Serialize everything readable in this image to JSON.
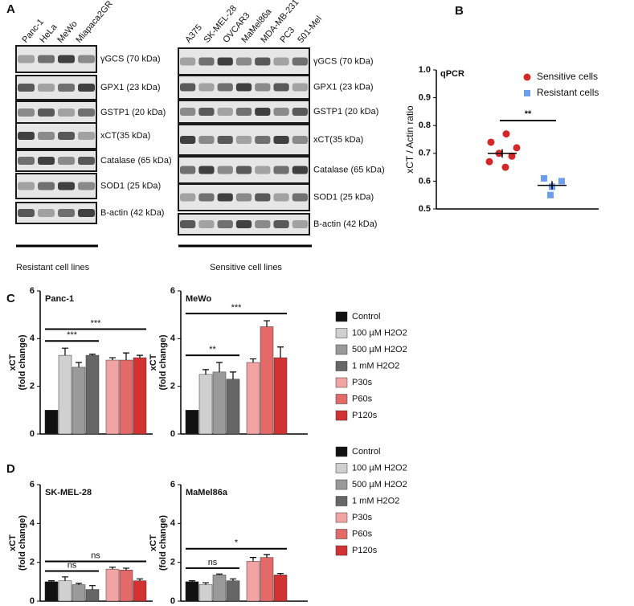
{
  "panel_labels": [
    "A",
    "B",
    "C",
    "D"
  ],
  "blots": [
    {
      "lanes": [
        "Panc-1",
        "HeLa",
        "MeWo",
        "Miapaca2GR"
      ],
      "proteins": [
        "γGCS (70 kDa)",
        "GPX1 (23 kDa)",
        "GSTP1 (20 kDa)",
        "xCT(35 kDa)",
        "Catalase (65 kDa)",
        "SOD1 (25 kDa)",
        "B-actin (42 kDa)"
      ],
      "group": "Resistant cell lines"
    },
    {
      "lanes": [
        "A375",
        "SK-MEL-28",
        "OVCAR3",
        "MaMel86a",
        "MDA-MB-231",
        "PC3",
        "501-Mel"
      ],
      "proteins": [
        "γGCS (70 kDa)",
        "GPX1 (23 kDa)",
        "GSTP1 (20 kDa)",
        "xCT(35 kDa)",
        "Catalase (65 kDa)",
        "SOD1 (25 kDa)",
        "B-actin (42 kDa)"
      ],
      "group": "Sensitive cell lines"
    }
  ],
  "chart_data": [
    {
      "type": "scatter",
      "title": "qPCR",
      "ylabel": "xCT / Actin ratio",
      "ylim": [
        0.5,
        1.0
      ],
      "yticks": [
        0.5,
        0.6,
        0.7,
        0.8,
        0.9,
        {
          "value": 1.0,
          "label": "1.0"
        }
      ],
      "series": [
        {
          "name": "Sensitive cells",
          "color": "#d62728",
          "marker": "circle",
          "values": [
            0.77,
            0.74,
            0.72,
            0.7,
            0.69,
            0.67,
            0.65
          ],
          "mean": 0.7,
          "error": 0.015
        },
        {
          "name": "Resistant cells",
          "color": "#6d9eeb",
          "marker": "square",
          "values": [
            0.61,
            0.6,
            0.58,
            0.55
          ],
          "mean": 0.585,
          "error": 0.015
        }
      ],
      "annotation": "**"
    },
    {
      "type": "bar",
      "title": "Panc-1",
      "ylabel": [
        "xCT",
        "(fold change)"
      ],
      "ylim": [
        0,
        6
      ],
      "yticks": [
        0,
        2,
        4,
        6
      ],
      "colors": [
        "#111111",
        "#d0d0d0",
        "#9a9a9a",
        "#666666",
        "#f2a3a3",
        "#e46a6a",
        "#d23232"
      ],
      "values": [
        1,
        3.3,
        2.8,
        3.3,
        3.1,
        3.1,
        3.2
      ],
      "errors": [
        null,
        0.3,
        0.2,
        0.05,
        0.1,
        0.3,
        0.1
      ],
      "annotations": [
        "***",
        "***"
      ]
    },
    {
      "type": "bar",
      "title": "MeWo",
      "ylabel": [
        "xCT",
        "(fold change)"
      ],
      "ylim": [
        0,
        6
      ],
      "yticks": [
        0,
        2,
        4,
        6
      ],
      "categories": [
        "Control",
        "100 µM  H2O2",
        "500 µM H2O2",
        "1 mM H2O2",
        "P30s",
        "P60s",
        "P120s"
      ],
      "colors": [
        "#111111",
        "#d0d0d0",
        "#9a9a9a",
        "#666666",
        "#f2a3a3",
        "#e46a6a",
        "#d23232"
      ],
      "values": [
        1,
        2.5,
        2.6,
        2.3,
        3.0,
        4.5,
        3.2
      ],
      "errors": [
        null,
        0.2,
        0.4,
        0.3,
        0.15,
        0.25,
        0.45
      ],
      "annotations": [
        "**",
        "***"
      ]
    },
    {
      "type": "bar",
      "title": "SK-MEL-28",
      "ylabel": [
        "xCT",
        "(fold change)"
      ],
      "ylim": [
        0,
        6
      ],
      "yticks": [
        0,
        2,
        4,
        6
      ],
      "colors": [
        "#111111",
        "#d0d0d0",
        "#9a9a9a",
        "#666666",
        "#f2a3a3",
        "#e46a6a",
        "#d23232"
      ],
      "values": [
        1,
        1.05,
        0.85,
        0.6,
        1.65,
        1.6,
        1.05
      ],
      "errors": [
        0.05,
        0.2,
        0.07,
        0.2,
        0.1,
        0.1,
        0.1
      ],
      "annotations": [
        "ns",
        "ns"
      ]
    },
    {
      "type": "bar",
      "title": "MaMel86a",
      "ylabel": [
        "xCT",
        "(fold change)"
      ],
      "ylim": [
        0,
        6
      ],
      "yticks": [
        0,
        2,
        4,
        6
      ],
      "categories": [
        "Control",
        "100 µM  H2O2",
        "500 µM H2O2",
        "1 mM H2O2",
        "P30s",
        "P60s",
        "P120s"
      ],
      "colors": [
        "#111111",
        "#d0d0d0",
        "#9a9a9a",
        "#666666",
        "#f2a3a3",
        "#e46a6a",
        "#d23232"
      ],
      "values": [
        1,
        0.85,
        1.35,
        1.05,
        2.05,
        2.25,
        1.35
      ],
      "errors": [
        0.05,
        0.1,
        0.05,
        0.1,
        0.2,
        0.15,
        0.07
      ],
      "annotations": [
        "ns",
        "*"
      ]
    }
  ]
}
